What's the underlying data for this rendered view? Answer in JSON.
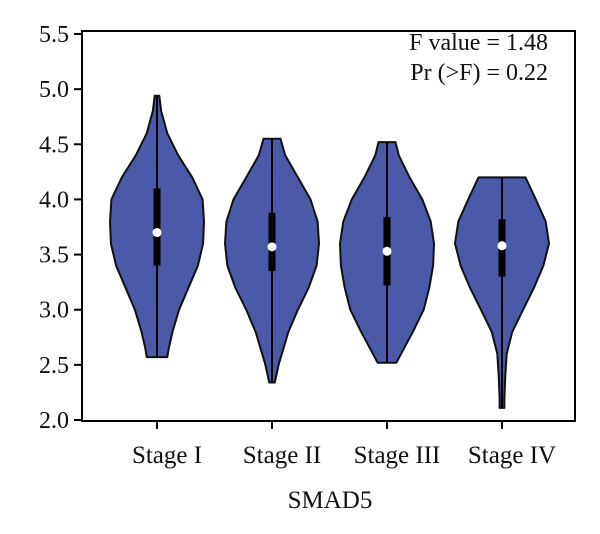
{
  "chart_data": {
    "type": "violin",
    "xlabel": "SMAD5",
    "ylabel": "",
    "ylim": [
      2.0,
      5.5
    ],
    "yticks": [
      "2.0",
      "2.5",
      "3.0",
      "3.5",
      "4.0",
      "4.5",
      "5.0",
      "5.5"
    ],
    "grid": false,
    "annotations": [
      "F value = 1.48",
      "Pr (>F) = 0.22"
    ],
    "fill_color": "#4a5aa8",
    "categories": [
      "Stage I",
      "Stage II",
      "Stage III",
      "Stage IV"
    ],
    "violins": [
      {
        "category": "Stage I",
        "min": 2.57,
        "max": 4.94,
        "q1": 3.4,
        "q3": 4.1,
        "median": 3.7,
        "profile": [
          [
            2.57,
            0.22
          ],
          [
            2.65,
            0.25
          ],
          [
            2.8,
            0.33
          ],
          [
            3.0,
            0.47
          ],
          [
            3.2,
            0.67
          ],
          [
            3.4,
            0.87
          ],
          [
            3.6,
            0.98
          ],
          [
            3.8,
            1.0
          ],
          [
            4.0,
            0.97
          ],
          [
            4.2,
            0.75
          ],
          [
            4.4,
            0.45
          ],
          [
            4.6,
            0.22
          ],
          [
            4.8,
            0.09
          ],
          [
            4.94,
            0.05
          ]
        ]
      },
      {
        "category": "Stage II",
        "min": 2.34,
        "max": 4.55,
        "q1": 3.35,
        "q3": 3.88,
        "median": 3.57,
        "profile": [
          [
            2.34,
            0.06
          ],
          [
            2.5,
            0.14
          ],
          [
            2.8,
            0.35
          ],
          [
            3.0,
            0.55
          ],
          [
            3.2,
            0.78
          ],
          [
            3.4,
            0.95
          ],
          [
            3.6,
            1.0
          ],
          [
            3.8,
            0.97
          ],
          [
            4.0,
            0.82
          ],
          [
            4.2,
            0.55
          ],
          [
            4.4,
            0.28
          ],
          [
            4.55,
            0.18
          ]
        ]
      },
      {
        "category": "Stage III",
        "min": 2.52,
        "max": 4.52,
        "q1": 3.22,
        "q3": 3.84,
        "median": 3.53,
        "profile": [
          [
            2.52,
            0.2
          ],
          [
            2.6,
            0.3
          ],
          [
            2.8,
            0.55
          ],
          [
            3.0,
            0.78
          ],
          [
            3.2,
            0.9
          ],
          [
            3.4,
            0.98
          ],
          [
            3.6,
            1.0
          ],
          [
            3.8,
            0.93
          ],
          [
            4.0,
            0.75
          ],
          [
            4.2,
            0.48
          ],
          [
            4.4,
            0.25
          ],
          [
            4.52,
            0.18
          ]
        ]
      },
      {
        "category": "Stage IV",
        "min": 2.11,
        "max": 4.2,
        "q1": 3.3,
        "q3": 3.82,
        "median": 3.58,
        "profile": [
          [
            2.11,
            0.05
          ],
          [
            2.2,
            0.05
          ],
          [
            2.4,
            0.07
          ],
          [
            2.6,
            0.1
          ],
          [
            2.8,
            0.22
          ],
          [
            3.0,
            0.45
          ],
          [
            3.2,
            0.68
          ],
          [
            3.4,
            0.88
          ],
          [
            3.6,
            1.0
          ],
          [
            3.8,
            0.93
          ],
          [
            4.0,
            0.72
          ],
          [
            4.2,
            0.5
          ]
        ]
      }
    ]
  }
}
